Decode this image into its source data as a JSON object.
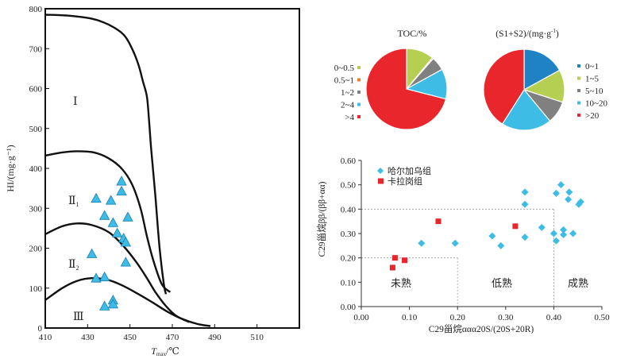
{
  "chart_data": [
    {
      "type": "scatter",
      "title": "",
      "xlabel": "T",
      "xlabel_sub": "max",
      "xlabel_unit": "/℃",
      "ylabel": "HI/(mg·g⁻¹)",
      "xlim": [
        410,
        530
      ],
      "ylim": [
        0,
        800
      ],
      "xticks": [
        "410",
        "430",
        "450",
        "470",
        "490",
        "510"
      ],
      "yticks": [
        "0",
        "100",
        "200",
        "300",
        "400",
        "500",
        "600",
        "700",
        "800"
      ],
      "kerogen_zones": [
        "Ⅰ",
        "Ⅱ₁",
        "Ⅱ₂",
        "Ⅲ"
      ],
      "boundary_curves": [
        {
          "x": [
            410,
            420,
            432,
            440,
            447,
            451,
            454,
            456,
            458,
            459,
            460,
            462,
            464,
            466,
            467
          ],
          "y": [
            785,
            783,
            775,
            760,
            735,
            700,
            660,
            620,
            580,
            520,
            450,
            330,
            200,
            110,
            85
          ]
        },
        {
          "x": [
            410,
            418,
            425,
            433,
            440,
            446,
            451,
            455,
            458,
            461,
            465,
            469
          ],
          "y": [
            432,
            440,
            443,
            440,
            425,
            400,
            360,
            300,
            230,
            170,
            110,
            90
          ]
        },
        {
          "x": [
            410,
            418,
            425,
            432,
            440,
            447,
            453,
            458,
            462,
            467,
            472,
            478
          ],
          "y": [
            235,
            255,
            262,
            258,
            240,
            205,
            165,
            125,
            90,
            55,
            30,
            15
          ]
        },
        {
          "x": [
            410,
            418,
            425,
            432,
            440,
            447,
            454,
            461,
            468,
            475,
            482,
            488
          ],
          "y": [
            70,
            100,
            118,
            125,
            120,
            105,
            85,
            63,
            40,
            22,
            10,
            5
          ]
        }
      ],
      "points": [
        {
          "x": 434,
          "y": 325
        },
        {
          "x": 446,
          "y": 368
        },
        {
          "x": 446,
          "y": 343
        },
        {
          "x": 441,
          "y": 320
        },
        {
          "x": 438,
          "y": 282
        },
        {
          "x": 442,
          "y": 264
        },
        {
          "x": 444,
          "y": 238
        },
        {
          "x": 447,
          "y": 225
        },
        {
          "x": 449,
          "y": 278
        },
        {
          "x": 448,
          "y": 215
        },
        {
          "x": 432,
          "y": 186
        },
        {
          "x": 448,
          "y": 165
        },
        {
          "x": 434,
          "y": 125
        },
        {
          "x": 438,
          "y": 128
        },
        {
          "x": 442,
          "y": 70
        },
        {
          "x": 442,
          "y": 60
        },
        {
          "x": 438,
          "y": 55
        }
      ]
    },
    {
      "type": "pie",
      "title": "TOC/%",
      "legend": [
        "0~0.5",
        "0.5~1",
        "1~2",
        "2~4",
        ">4"
      ],
      "colors": [
        "#b5cf52",
        "#f07d28",
        "#808080",
        "#3dbde6",
        "#e8262b"
      ],
      "values": [
        11,
        0.5,
        5.5,
        12,
        71
      ]
    },
    {
      "type": "pie",
      "title": "(S1+S2)/(mg·g",
      "title_sup": "-1",
      "title_end": ")",
      "legend": [
        "0~1",
        "1~5",
        "5~10",
        "10~20",
        ">20"
      ],
      "colors": [
        "#1f82c4",
        "#b5cf52",
        "#808080",
        "#3dbde6",
        "#e8262b"
      ],
      "values": [
        17,
        13,
        9,
        20,
        41
      ]
    },
    {
      "type": "scatter",
      "title": "",
      "xlabel": "C29甾烷ααα20S/(20S+20R)",
      "ylabel": "C29甾烷ββ/(ββ+αα)",
      "xlim": [
        0,
        0.5
      ],
      "ylim": [
        0,
        0.6
      ],
      "xticks": [
        "0.00",
        "0.10",
        "0.20",
        "0.30",
        "0.40",
        "0.50"
      ],
      "yticks": [
        "0.00",
        "0.10",
        "0.20",
        "0.30",
        "0.40",
        "0.50",
        "0.60"
      ],
      "regions": [
        "未熟",
        "低熟",
        "成熟"
      ],
      "series": [
        {
          "name": "哈尔加乌组",
          "marker": "diamond",
          "color": "#3dbde6",
          "points": [
            [
              0.125,
              0.26
            ],
            [
              0.195,
              0.26
            ],
            [
              0.272,
              0.29
            ],
            [
              0.29,
              0.25
            ],
            [
              0.34,
              0.285
            ],
            [
              0.34,
              0.42
            ],
            [
              0.34,
              0.47
            ],
            [
              0.375,
              0.325
            ],
            [
              0.4,
              0.3
            ],
            [
              0.405,
              0.465
            ],
            [
              0.405,
              0.27
            ],
            [
              0.415,
              0.5
            ],
            [
              0.42,
              0.295
            ],
            [
              0.42,
              0.315
            ],
            [
              0.43,
              0.44
            ],
            [
              0.432,
              0.47
            ],
            [
              0.44,
              0.3
            ],
            [
              0.452,
              0.42
            ],
            [
              0.456,
              0.43
            ]
          ]
        },
        {
          "name": "卡拉岗组",
          "marker": "square",
          "color": "#e8262b",
          "points": [
            [
              0.065,
              0.16
            ],
            [
              0.07,
              0.2
            ],
            [
              0.09,
              0.19
            ],
            [
              0.16,
              0.35
            ],
            [
              0.32,
              0.33
            ]
          ]
        }
      ],
      "threshold_lines": {
        "x": [
          0.2,
          0.4
        ],
        "y": [
          0.2,
          0.4
        ]
      }
    }
  ]
}
